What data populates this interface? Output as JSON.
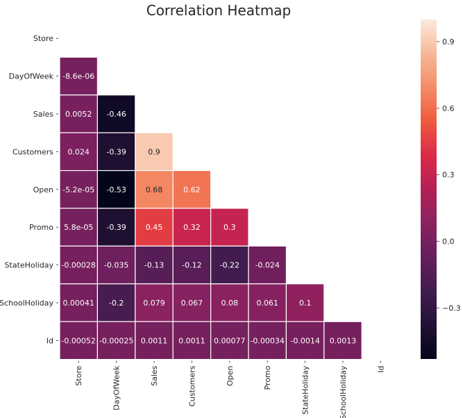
{
  "chart_data": {
    "type": "heatmap",
    "title": "Correlation Heatmap",
    "xlabel": "",
    "ylabel": "",
    "variables": [
      "Store",
      "DayOfWeek",
      "Sales",
      "Customers",
      "Open",
      "Promo",
      "StateHoliday",
      "SchoolHoliday",
      "Id"
    ],
    "mask": "upper-triangle-and-diagonal",
    "cells": [
      {
        "row": 1,
        "col": 0,
        "value": -8.6e-06,
        "label": "-8.6e-06"
      },
      {
        "row": 2,
        "col": 0,
        "value": 0.0052,
        "label": "0.0052"
      },
      {
        "row": 2,
        "col": 1,
        "value": -0.46,
        "label": "-0.46"
      },
      {
        "row": 3,
        "col": 0,
        "value": 0.024,
        "label": "0.024"
      },
      {
        "row": 3,
        "col": 1,
        "value": -0.39,
        "label": "-0.39"
      },
      {
        "row": 3,
        "col": 2,
        "value": 0.9,
        "label": "0.9"
      },
      {
        "row": 4,
        "col": 0,
        "value": -5.2e-05,
        "label": "-5.2e-05"
      },
      {
        "row": 4,
        "col": 1,
        "value": -0.53,
        "label": "-0.53"
      },
      {
        "row": 4,
        "col": 2,
        "value": 0.68,
        "label": "0.68"
      },
      {
        "row": 4,
        "col": 3,
        "value": 0.62,
        "label": "0.62"
      },
      {
        "row": 5,
        "col": 0,
        "value": 5.8e-05,
        "label": "5.8e-05"
      },
      {
        "row": 5,
        "col": 1,
        "value": -0.39,
        "label": "-0.39"
      },
      {
        "row": 5,
        "col": 2,
        "value": 0.45,
        "label": "0.45"
      },
      {
        "row": 5,
        "col": 3,
        "value": 0.32,
        "label": "0.32"
      },
      {
        "row": 5,
        "col": 4,
        "value": 0.3,
        "label": "0.3"
      },
      {
        "row": 6,
        "col": 0,
        "value": -0.00028,
        "label": "-0.00028"
      },
      {
        "row": 6,
        "col": 1,
        "value": -0.035,
        "label": "-0.035"
      },
      {
        "row": 6,
        "col": 2,
        "value": -0.13,
        "label": "-0.13"
      },
      {
        "row": 6,
        "col": 3,
        "value": -0.12,
        "label": "-0.12"
      },
      {
        "row": 6,
        "col": 4,
        "value": -0.22,
        "label": "-0.22"
      },
      {
        "row": 6,
        "col": 5,
        "value": -0.024,
        "label": "-0.024"
      },
      {
        "row": 7,
        "col": 0,
        "value": 0.00041,
        "label": "0.00041"
      },
      {
        "row": 7,
        "col": 1,
        "value": -0.2,
        "label": "-0.2"
      },
      {
        "row": 7,
        "col": 2,
        "value": 0.079,
        "label": "0.079"
      },
      {
        "row": 7,
        "col": 3,
        "value": 0.067,
        "label": "0.067"
      },
      {
        "row": 7,
        "col": 4,
        "value": 0.08,
        "label": "0.08"
      },
      {
        "row": 7,
        "col": 5,
        "value": 0.061,
        "label": "0.061"
      },
      {
        "row": 7,
        "col": 6,
        "value": 0.1,
        "label": "0.1"
      },
      {
        "row": 8,
        "col": 0,
        "value": -0.00052,
        "label": "-0.00052"
      },
      {
        "row": 8,
        "col": 1,
        "value": -0.00025,
        "label": "-0.00025"
      },
      {
        "row": 8,
        "col": 2,
        "value": 0.0011,
        "label": "0.0011"
      },
      {
        "row": 8,
        "col": 3,
        "value": 0.0011,
        "label": "0.0011"
      },
      {
        "row": 8,
        "col": 4,
        "value": 0.00077,
        "label": "0.00077"
      },
      {
        "row": 8,
        "col": 5,
        "value": -0.00034,
        "label": "-0.00034"
      },
      {
        "row": 8,
        "col": 6,
        "value": -0.0014,
        "label": "-0.0014"
      },
      {
        "row": 8,
        "col": 7,
        "value": 0.0013,
        "label": "0.0013"
      }
    ],
    "colorbar": {
      "colormap": "rocket",
      "vmin": -0.53,
      "vmax": 1.0,
      "ticks": [
        -0.3,
        0.0,
        0.3,
        0.6,
        0.9
      ],
      "tick_labels": [
        "−0.3",
        "0.0",
        "0.3",
        "0.6",
        "0.9"
      ]
    },
    "colors": {
      "cell_border": "#ffffff",
      "text_dark": "#262626",
      "text_light": "#ffffff",
      "axis_text": "#262626"
    }
  }
}
